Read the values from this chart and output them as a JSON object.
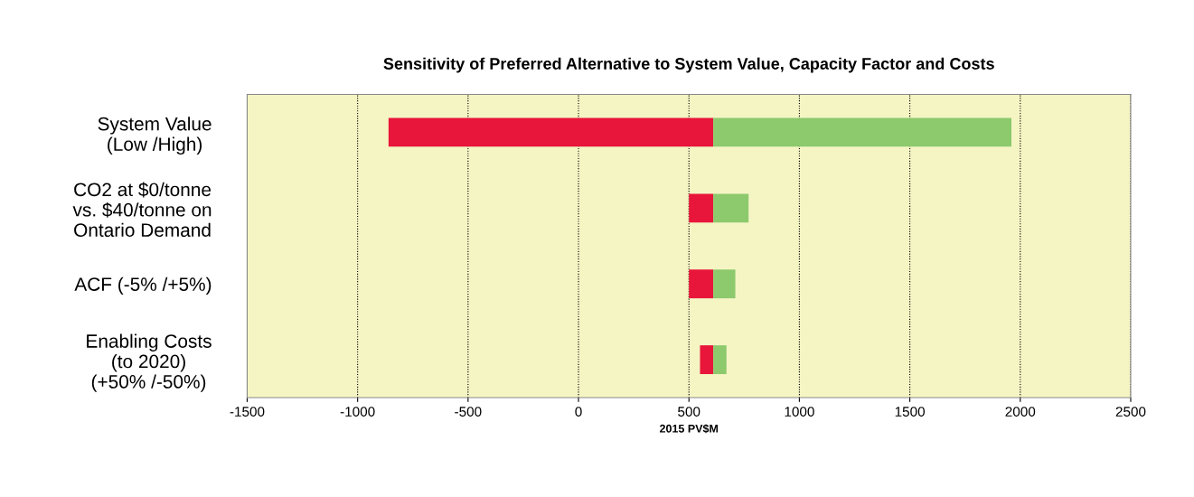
{
  "chart_data": {
    "type": "bar",
    "orientation": "horizontal",
    "title": "Sensitivity of Preferred Alternative to System Value, Capacity Factor and Costs",
    "xlabel": "2015 PV$M",
    "categories": [
      "System Value\n(Low /High)",
      "CO2 at $0/tonne\nvs. $40/tonne on\nOntario Demand",
      "ACF (-5% /+5%)",
      "Enabling Costs\n(to 2020)\n(+50% /-50%)"
    ],
    "series": [
      {
        "color": "#e8163a",
        "base": [
          -860,
          500,
          500,
          550
        ],
        "values": [
          1470,
          110,
          110,
          60
        ]
      },
      {
        "color": "#8dc96d",
        "base": [
          610,
          610,
          610,
          610
        ],
        "values": [
          1350,
          160,
          100,
          60
        ]
      }
    ],
    "xlim": [
      -1500,
      2500
    ],
    "xticks": [
      -1500,
      -1000,
      -500,
      0,
      500,
      1000,
      1500,
      2000,
      2500
    ],
    "grid": "x"
  }
}
